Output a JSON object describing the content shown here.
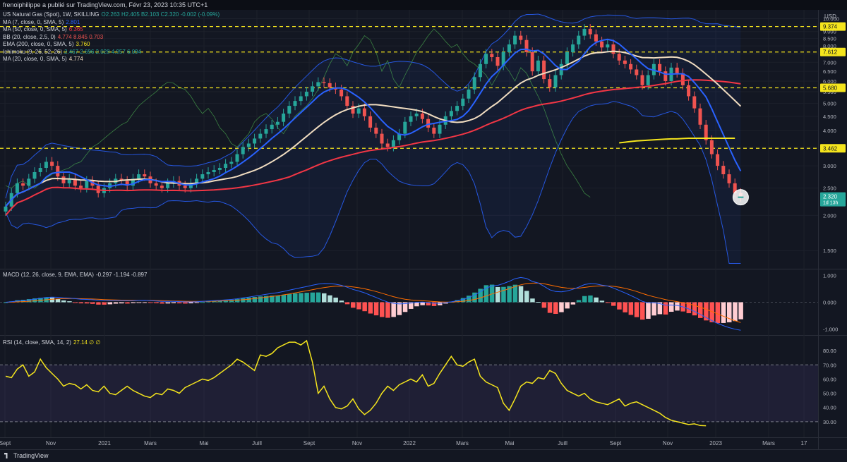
{
  "header": {
    "publisher_line": "frenoiphilippe a publié sur TradingView.com, Févr 23, 2023 10:35 UTC+1"
  },
  "colors": {
    "background": "#131722",
    "up_candle": "#26a69a",
    "down_candle": "#ef5350",
    "ma7": "#2962ff",
    "ma50": "#f23645",
    "ma20_beige": "#f0dcc0",
    "ema200": "#f5e51d",
    "bollinger": "#2962ff",
    "macd_line": "#2962ff",
    "signal_line": "#ff6d00",
    "rsi_line": "#f5e51d",
    "level_line": "#f5e51d"
  },
  "legend": [
    {
      "label": "US Natural Gas (Spot), 1W, SKILLING",
      "values": "O2.263  H2.405  B2.103  C2.320  -0.002 (-0.09%)",
      "color": "#26a69a"
    },
    {
      "label": "MA (7, close, 0, SMA, 5)",
      "values": "2.801",
      "color": "#2962ff"
    },
    {
      "label": "MA (50, close, 0, SMA, 5)",
      "values": "6.365",
      "color": "#f23645"
    },
    {
      "label": "BB (20, close, 2.5, 0)",
      "values": "4.774  8.845  0.703",
      "color": "#ef5350"
    },
    {
      "label": "EMA (200, close, 0, SMA, 5)",
      "values": "3.760",
      "color": "#f5e51d"
    },
    {
      "label": "Ichimoku (9, 26, 52, 26)",
      "values": "2.467  2.696  2.028  4.957  6.094",
      "color": "#26a69a"
    },
    {
      "label": "MA (20, close, 0, SMA, 5)",
      "values": "4.774",
      "color": "#f0dcc0"
    }
  ],
  "macd_label": {
    "label": "MACD (12, 26, close, 9, EMA, EMA)",
    "values": "-0.297  -1.194  -0.897"
  },
  "rsi_label": {
    "label": "RSI (14, close, SMA, 14, 2)",
    "values": "27.14  ∅  ∅"
  },
  "footer": {
    "brand": "TradingView"
  },
  "price_badges": {
    "levels": [
      "9.374",
      "7.612",
      "5.680",
      "3.462"
    ],
    "last_price": "2.320",
    "countdown": "1d 13h"
  },
  "chart_data": {
    "type": "candlestick",
    "title": "US Natural Gas (Spot), 1W, SKILLING",
    "xlabel": "",
    "ylabel": "USD",
    "y_scale": "log",
    "ylim": [
      1.3,
      10.5
    ],
    "x_tick_labels": [
      "Sept",
      "Nov",
      "2021",
      "Mars",
      "Mai",
      "Juill",
      "Sept",
      "Nov",
      "2022",
      "Mars",
      "Mai",
      "Juill",
      "Sept",
      "Nov",
      "2023",
      "Mars",
      "17"
    ],
    "y_tick_labels": [
      "10.000",
      "9.500",
      "9.000",
      "8.500",
      "8.000",
      "7.500",
      "7.000",
      "6.500",
      "6.000",
      "5.500",
      "5.000",
      "4.500",
      "4.000",
      "3.500",
      "3.000",
      "2.500",
      "2.000",
      "1.500"
    ],
    "horizontal_levels": [
      9.374,
      7.612,
      5.68,
      3.462
    ],
    "closes": [
      2.15,
      2.4,
      2.6,
      2.55,
      2.7,
      2.85,
      2.95,
      3.1,
      3.0,
      2.75,
      2.6,
      2.7,
      2.55,
      2.5,
      2.65,
      2.55,
      2.4,
      2.5,
      2.6,
      2.7,
      2.65,
      2.55,
      2.7,
      2.8,
      2.75,
      2.6,
      2.55,
      2.5,
      2.6,
      2.65,
      2.55,
      2.5,
      2.6,
      2.7,
      2.8,
      2.85,
      2.9,
      2.95,
      3.05,
      3.1,
      3.3,
      3.5,
      3.6,
      3.75,
      3.9,
      4.05,
      4.2,
      4.3,
      4.6,
      4.9,
      5.1,
      5.3,
      5.5,
      5.75,
      5.95,
      5.9,
      5.7,
      5.6,
      5.3,
      4.9,
      4.6,
      4.8,
      4.5,
      4.1,
      3.9,
      3.6,
      3.5,
      3.7,
      3.9,
      4.3,
      4.5,
      4.6,
      4.4,
      4.1,
      3.9,
      4.2,
      4.5,
      4.7,
      4.9,
      5.2,
      5.6,
      6.2,
      6.9,
      7.5,
      7.3,
      6.8,
      7.6,
      8.1,
      8.7,
      8.4,
      7.6,
      6.5,
      7.1,
      6.1,
      5.7,
      6.3,
      6.9,
      7.6,
      8.1,
      8.7,
      9.2,
      8.8,
      8.3,
      7.9,
      8.1,
      7.5,
      7.1,
      6.9,
      6.6,
      6.3,
      5.8,
      6.3,
      6.9,
      6.5,
      6.0,
      6.7,
      6.4,
      5.8,
      5.3,
      4.8,
      4.2,
      3.7,
      3.3,
      3.0,
      2.8,
      2.6,
      2.4,
      2.32
    ],
    "ema200": {
      "start_index": 106,
      "values": [
        3.62,
        3.64,
        3.66,
        3.68,
        3.69,
        3.7,
        3.71,
        3.72,
        3.73,
        3.74,
        3.74,
        3.75,
        3.76,
        3.76,
        3.76,
        3.76,
        3.76,
        3.76,
        3.76,
        3.76,
        3.76
      ]
    },
    "macd": {
      "ylim": [
        -1.2,
        1.2
      ],
      "y_tick_labels": [
        "1.000",
        "0.000",
        "-1.000"
      ]
    },
    "rsi": {
      "ylim": [
        20,
        90
      ],
      "y_tick_labels": [
        "80.00",
        "70.00",
        "60.00",
        "50.00",
        "40.00",
        "30.00"
      ],
      "bands": [
        30,
        70
      ],
      "values": [
        62,
        61,
        67,
        70,
        62,
        65,
        74,
        68,
        64,
        60,
        55,
        57,
        56,
        53,
        56,
        52,
        51,
        55,
        50,
        49,
        52,
        55,
        52,
        50,
        48,
        47,
        50,
        49,
        53,
        52,
        50,
        54,
        56,
        58,
        60,
        59,
        61,
        64,
        67,
        70,
        74,
        72,
        69,
        66,
        77,
        76,
        78,
        82,
        84,
        86,
        86,
        84,
        87,
        72,
        50,
        55,
        46,
        40,
        39,
        41,
        46,
        39,
        35,
        38,
        43,
        50,
        55,
        52,
        56,
        58,
        60,
        58,
        63,
        55,
        57,
        64,
        70,
        76,
        70,
        69,
        72,
        74,
        62,
        58,
        56,
        54,
        43,
        38,
        46,
        55,
        58,
        57,
        61,
        60,
        66,
        64,
        57,
        52,
        50,
        48,
        50,
        46,
        44,
        43,
        42,
        44,
        46,
        41,
        43,
        44,
        42,
        40,
        38,
        36,
        33,
        31,
        30,
        29,
        28,
        28.5,
        27.3,
        27.14
      ]
    }
  }
}
